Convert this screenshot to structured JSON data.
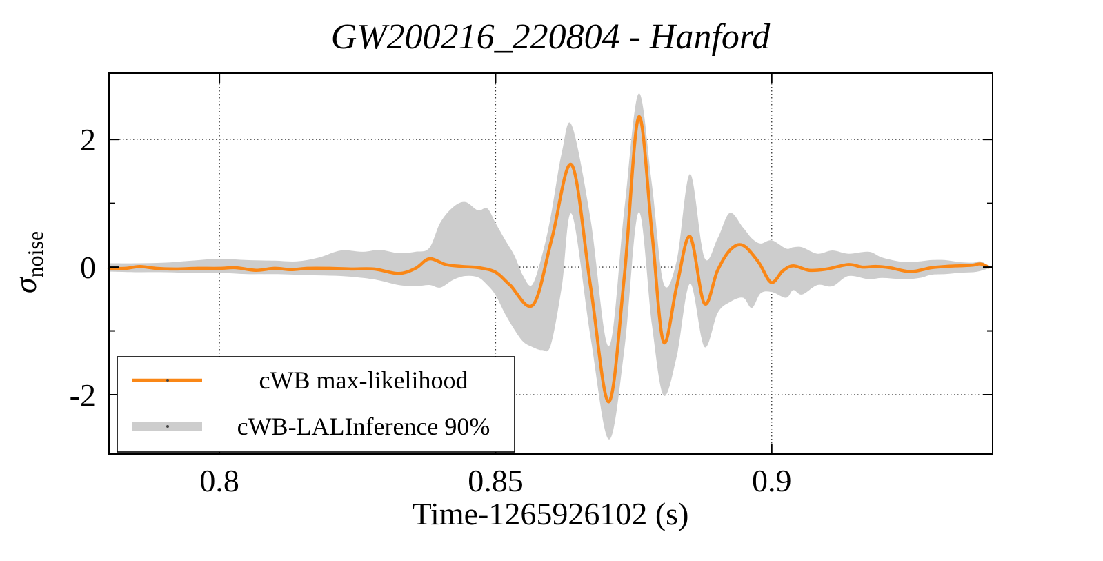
{
  "title": "GW200216_220804 - Hanford",
  "axes": {
    "xlabel": "Time-1265926102 (s)",
    "ylabel_symbol": "σ",
    "ylabel_sub": "noise"
  },
  "chart_data": {
    "type": "line",
    "title": "GW200216_220804 - Hanford",
    "xlabel": "Time-1265926102 (s)",
    "ylabel": "sigma_noise",
    "xlim": [
      0.78,
      0.94
    ],
    "ylim": [
      -2.93,
      3.04
    ],
    "grid": "dotted, at major ticks",
    "legend_position": "lower left, framed box",
    "xticks": [
      {
        "v": 0.8,
        "label": "0.8"
      },
      {
        "v": 0.85,
        "label": "0.85"
      },
      {
        "v": 0.9,
        "label": "0.9"
      }
    ],
    "yticks": [
      {
        "v": 2,
        "label": "2"
      },
      {
        "v": 0,
        "label": "0"
      },
      {
        "v": -2,
        "label": "-2"
      }
    ],
    "yticks_minor": [
      1,
      -1
    ],
    "line": {
      "name": "cWB max-likelihood",
      "color": "#fa8716",
      "points": [
        [
          0.78,
          -0.02
        ],
        [
          0.783,
          -0.02
        ],
        [
          0.7856,
          0.01
        ],
        [
          0.7885,
          -0.02
        ],
        [
          0.792,
          -0.03
        ],
        [
          0.796,
          -0.02
        ],
        [
          0.8,
          -0.02
        ],
        [
          0.803,
          -0.01
        ],
        [
          0.8066,
          -0.05
        ],
        [
          0.81,
          -0.02
        ],
        [
          0.813,
          -0.04
        ],
        [
          0.816,
          -0.02
        ],
        [
          0.82,
          -0.02
        ],
        [
          0.824,
          -0.03
        ],
        [
          0.828,
          -0.03
        ],
        [
          0.8324,
          -0.1
        ],
        [
          0.8355,
          -0.02
        ],
        [
          0.838,
          0.13
        ],
        [
          0.841,
          0.04
        ],
        [
          0.844,
          0.01
        ],
        [
          0.847,
          -0.01
        ],
        [
          0.85,
          -0.08
        ],
        [
          0.8526,
          -0.28
        ],
        [
          0.8568,
          -0.59
        ],
        [
          0.8602,
          0.45
        ],
        [
          0.8638,
          1.6
        ],
        [
          0.8672,
          -0.3
        ],
        [
          0.8705,
          -2.11
        ],
        [
          0.8733,
          -0.15
        ],
        [
          0.8759,
          2.35
        ],
        [
          0.8783,
          0.55
        ],
        [
          0.8804,
          -1.17
        ],
        [
          0.8828,
          -0.3
        ],
        [
          0.8852,
          0.48
        ],
        [
          0.8878,
          -0.57
        ],
        [
          0.8902,
          -0.05
        ],
        [
          0.8925,
          0.27
        ],
        [
          0.8948,
          0.34
        ],
        [
          0.8976,
          0.08
        ],
        [
          0.8999,
          -0.24
        ],
        [
          0.902,
          -0.06
        ],
        [
          0.9039,
          0.02
        ],
        [
          0.9068,
          -0.05
        ],
        [
          0.91,
          -0.03
        ],
        [
          0.9139,
          0.04
        ],
        [
          0.9164,
          0.0
        ],
        [
          0.919,
          0.01
        ],
        [
          0.9214,
          -0.01
        ],
        [
          0.9251,
          -0.07
        ],
        [
          0.9289,
          -0.01
        ],
        [
          0.9314,
          0.01
        ],
        [
          0.9339,
          0.02
        ],
        [
          0.9364,
          0.03
        ],
        [
          0.9378,
          0.05
        ],
        [
          0.9393,
          0.0
        ]
      ]
    },
    "band": {
      "name": "cWB-LALInference 90%",
      "color": "#cdcdcd",
      "points_t_lo_hi": [
        [
          0.78,
          -0.07,
          0.06
        ],
        [
          0.785,
          -0.08,
          0.06
        ],
        [
          0.79,
          -0.08,
          0.07
        ],
        [
          0.795,
          -0.09,
          0.1
        ],
        [
          0.8,
          -0.09,
          0.13
        ],
        [
          0.805,
          -0.11,
          0.11
        ],
        [
          0.81,
          -0.11,
          0.1
        ],
        [
          0.814,
          -0.12,
          0.09
        ],
        [
          0.818,
          -0.13,
          0.15
        ],
        [
          0.822,
          -0.14,
          0.26
        ],
        [
          0.826,
          -0.17,
          0.24
        ],
        [
          0.829,
          -0.21,
          0.27
        ],
        [
          0.8324,
          -0.28,
          0.22
        ],
        [
          0.8355,
          -0.3,
          0.24
        ],
        [
          0.838,
          -0.28,
          0.3
        ],
        [
          0.84,
          -0.32,
          0.7
        ],
        [
          0.8423,
          -0.2,
          0.94
        ],
        [
          0.8445,
          -0.14,
          1.02
        ],
        [
          0.8468,
          -0.16,
          0.89
        ],
        [
          0.8485,
          -0.28,
          0.92
        ],
        [
          0.85,
          -0.44,
          0.69
        ],
        [
          0.8517,
          -0.73,
          0.43
        ],
        [
          0.8534,
          -0.98,
          0.18
        ],
        [
          0.855,
          -1.17,
          -0.14
        ],
        [
          0.8566,
          -1.25,
          -0.28
        ],
        [
          0.8584,
          -1.3,
          0.18
        ],
        [
          0.86,
          -1.22,
          0.8
        ],
        [
          0.862,
          -0.3,
          1.8
        ],
        [
          0.8638,
          0.83,
          2.22
        ],
        [
          0.8672,
          -1.1,
          0.75
        ],
        [
          0.8705,
          -2.7,
          -1.24
        ],
        [
          0.8733,
          -1.3,
          0.9
        ],
        [
          0.8759,
          0.86,
          2.72
        ],
        [
          0.8783,
          -0.9,
          1.3
        ],
        [
          0.8804,
          -2.01,
          -0.25
        ],
        [
          0.8828,
          -1.4,
          0.1
        ],
        [
          0.8852,
          -0.26,
          1.46
        ],
        [
          0.8878,
          -1.25,
          0.15
        ],
        [
          0.8902,
          -0.72,
          0.45
        ],
        [
          0.8924,
          -0.55,
          0.85
        ],
        [
          0.8948,
          -0.48,
          0.62
        ],
        [
          0.8964,
          -0.64,
          0.45
        ],
        [
          0.898,
          -0.41,
          0.37
        ],
        [
          0.9,
          -0.39,
          0.42
        ],
        [
          0.9026,
          -0.48,
          0.29
        ],
        [
          0.9039,
          -0.36,
          0.31
        ],
        [
          0.9055,
          -0.43,
          0.31
        ],
        [
          0.9083,
          -0.28,
          0.21
        ],
        [
          0.911,
          -0.3,
          0.26
        ],
        [
          0.9139,
          -0.14,
          0.21
        ],
        [
          0.9176,
          -0.19,
          0.24
        ],
        [
          0.92,
          -0.17,
          0.15
        ],
        [
          0.9239,
          -0.19,
          0.08
        ],
        [
          0.9268,
          -0.17,
          0.09
        ],
        [
          0.9289,
          -0.12,
          0.11
        ],
        [
          0.9314,
          -0.11,
          0.11
        ],
        [
          0.9339,
          -0.09,
          0.08
        ],
        [
          0.9364,
          -0.08,
          0.07
        ],
        [
          0.9378,
          -0.06,
          0.09
        ],
        [
          0.9393,
          -0.02,
          0.02
        ]
      ]
    }
  },
  "legend": {
    "entries": [
      {
        "label": "cWB max-likelihood",
        "swatch": "orange-line"
      },
      {
        "label": "cWB-LALInference 90%",
        "swatch": "gray-fill"
      }
    ]
  },
  "colors": {
    "line_orange": "#fa8716",
    "band_gray": "#cdcdcd",
    "axis_black": "#000000",
    "grid_dot": "#333333"
  }
}
